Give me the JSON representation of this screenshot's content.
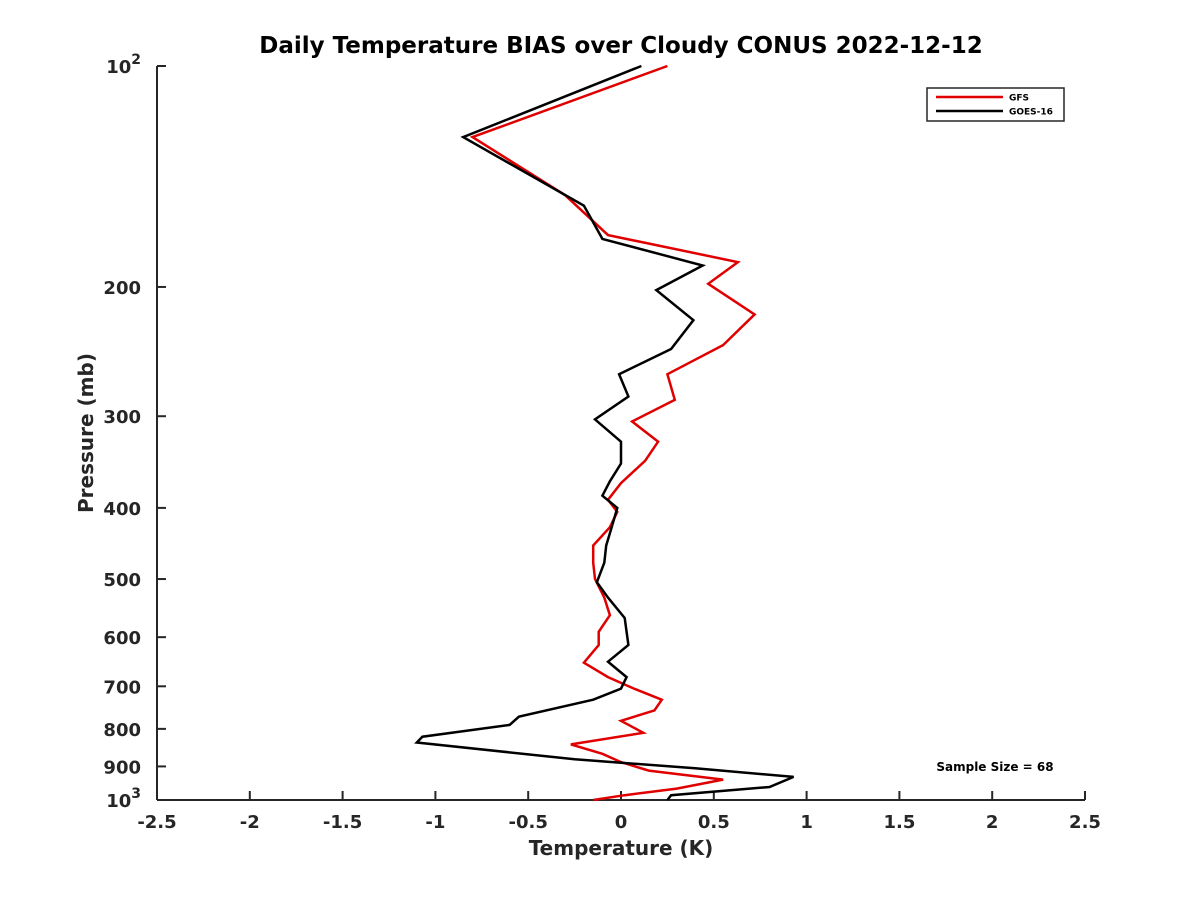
{
  "chart_data": {
    "type": "line",
    "title": "Daily Temperature BIAS over Cloudy CONUS 2022-12-12",
    "xlabel": "Temperature (K)",
    "ylabel": "Pressure (mb)",
    "xlim": [
      -2.5,
      2.5
    ],
    "ylim": [
      100,
      1000
    ],
    "yscale": "log",
    "y_reversed": true,
    "grid": false,
    "legend_position": "top-right",
    "x_ticks": [
      "-2.5",
      "-2",
      "-1.5",
      "-1",
      "-0.5",
      "0",
      "0.5",
      "1",
      "1.5",
      "2",
      "2.5"
    ],
    "x_tick_values": [
      -2.5,
      -2,
      -1.5,
      -1,
      -0.5,
      0,
      0.5,
      1,
      1.5,
      2,
      2.5
    ],
    "y_ticks": [
      {
        "value": 100,
        "base": "10",
        "exp": "2"
      },
      {
        "value": 200,
        "label": "200"
      },
      {
        "value": 300,
        "label": "300"
      },
      {
        "value": 400,
        "label": "400"
      },
      {
        "value": 500,
        "label": "500"
      },
      {
        "value": 600,
        "label": "600"
      },
      {
        "value": 700,
        "label": "700"
      },
      {
        "value": 800,
        "label": "800"
      },
      {
        "value": 900,
        "label": "900"
      },
      {
        "value": 1000,
        "base": "10",
        "exp": "3"
      }
    ],
    "series": [
      {
        "name": "GFS",
        "color": "#e00000",
        "points": [
          [
            0.25,
            100
          ],
          [
            -0.8,
            125
          ],
          [
            -0.3,
            150
          ],
          [
            -0.07,
            170
          ],
          [
            0.63,
            185
          ],
          [
            0.47,
            198
          ],
          [
            0.72,
            218
          ],
          [
            0.55,
            240
          ],
          [
            0.25,
            263
          ],
          [
            0.29,
            285
          ],
          [
            0.06,
            305
          ],
          [
            0.2,
            325
          ],
          [
            0.13,
            345
          ],
          [
            0.0,
            370
          ],
          [
            -0.07,
            390
          ],
          [
            -0.02,
            405
          ],
          [
            -0.06,
            425
          ],
          [
            -0.15,
            450
          ],
          [
            -0.15,
            475
          ],
          [
            -0.14,
            500
          ],
          [
            -0.09,
            530
          ],
          [
            -0.06,
            560
          ],
          [
            -0.12,
            590
          ],
          [
            -0.12,
            615
          ],
          [
            -0.2,
            650
          ],
          [
            -0.07,
            680
          ],
          [
            0.07,
            705
          ],
          [
            0.22,
            730
          ],
          [
            0.18,
            755
          ],
          [
            0.0,
            780
          ],
          [
            0.12,
            810
          ],
          [
            -0.27,
            840
          ],
          [
            -0.1,
            865
          ],
          [
            0.0,
            888
          ],
          [
            0.15,
            912
          ],
          [
            0.55,
            938
          ],
          [
            0.3,
            965
          ],
          [
            0.02,
            985
          ],
          [
            -0.15,
            1000
          ]
        ]
      },
      {
        "name": "GOES-16",
        "color": "#000000",
        "points": [
          [
            0.11,
            100
          ],
          [
            -0.85,
            125
          ],
          [
            -0.2,
            155
          ],
          [
            -0.1,
            172
          ],
          [
            0.44,
            187
          ],
          [
            0.19,
            202
          ],
          [
            0.39,
            222
          ],
          [
            0.27,
            243
          ],
          [
            -0.01,
            263
          ],
          [
            0.04,
            282
          ],
          [
            -0.14,
            303
          ],
          [
            0.0,
            325
          ],
          [
            0.0,
            348
          ],
          [
            -0.06,
            368
          ],
          [
            -0.1,
            385
          ],
          [
            -0.02,
            400
          ],
          [
            -0.05,
            425
          ],
          [
            -0.08,
            450
          ],
          [
            -0.09,
            475
          ],
          [
            -0.13,
            505
          ],
          [
            -0.07,
            530
          ],
          [
            0.02,
            565
          ],
          [
            0.04,
            615
          ],
          [
            -0.07,
            648
          ],
          [
            0.03,
            680
          ],
          [
            0.0,
            705
          ],
          [
            -0.15,
            730
          ],
          [
            -0.55,
            770
          ],
          [
            -0.6,
            790
          ],
          [
            -1.07,
            820
          ],
          [
            -1.1,
            835
          ],
          [
            -0.25,
            880
          ],
          [
            0.4,
            905
          ],
          [
            0.93,
            930
          ],
          [
            0.8,
            960
          ],
          [
            0.27,
            985
          ],
          [
            0.25,
            1000
          ]
        ]
      }
    ],
    "legend": [
      "GFS",
      "GOES-16"
    ],
    "annotation": "Sample Size = 68"
  }
}
